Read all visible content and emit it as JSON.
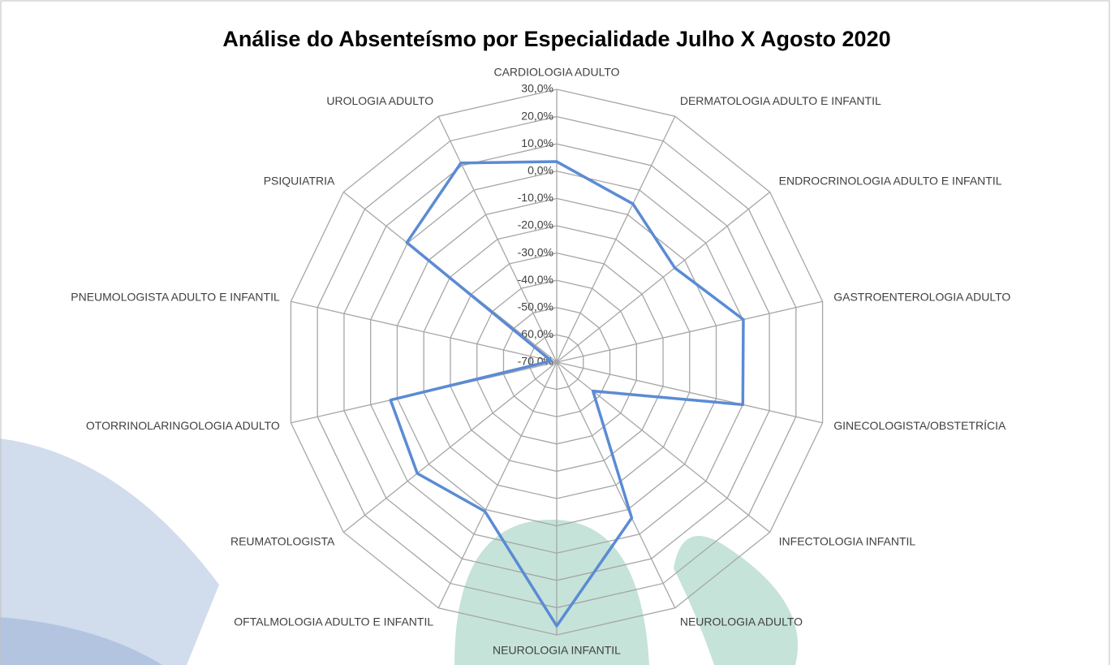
{
  "chart_data": {
    "type": "radar",
    "title": "Análise do Absenteísmo por Especialidade Julho X Agosto 2020",
    "categories": [
      "CARDIOLOGIA ADULTO",
      "DERMATOLOGIA ADULTO E INFANTIL",
      "ENDROCRINOLOGIA ADULTO E INFANTIL",
      "GASTROENTEROLOGIA ADULTO",
      "GINECOLOGISTA/OBSTETRÍCIA",
      "INFECTOLOGIA INFANTIL",
      "NEUROLOGIA ADULTO",
      "NEUROLOGIA INFANTIL",
      "OFTALMOLOGIA ADULTO E INFANTIL",
      "REUMATOLOGISTA",
      "OTORRINOLARINGOLOGIA ADULTO",
      "PNEUMOLOGISTA ADULTO E INFANTIL",
      "PSIQUIATRIA",
      "UROLOGIA ADULTO"
    ],
    "values": [
      3.5,
      -5.6,
      -14.6,
      0.2,
      0,
      -53,
      -6.6,
      26.7,
      -9.3,
      -4.6,
      -7.5,
      -68,
      0.3,
      11
    ],
    "color": "#5b8bd4",
    "ylim": [
      -70,
      30
    ],
    "yticks": [
      {
        "value": -70,
        "label": "-70,0%"
      },
      {
        "value": -60,
        "label": "-60,0%"
      },
      {
        "value": -50,
        "label": "-50,0%"
      },
      {
        "value": -40,
        "label": "-40,0%"
      },
      {
        "value": -30,
        "label": "-30,0%"
      },
      {
        "value": -20,
        "label": "-20,0%"
      },
      {
        "value": -10,
        "label": "-10,0%"
      },
      {
        "value": 0,
        "label": "0,0%"
      },
      {
        "value": 10,
        "label": "10,0%"
      },
      {
        "value": 20,
        "label": "20,0%"
      },
      {
        "value": 30,
        "label": "30,0%"
      }
    ],
    "grid": true
  }
}
